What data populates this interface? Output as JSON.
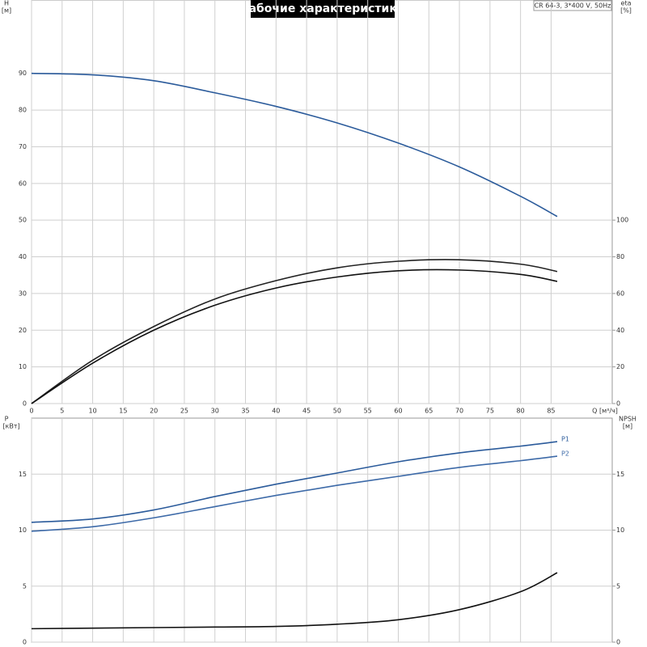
{
  "chart_data": [
    {
      "type": "line",
      "title": "Рабочие характеристики",
      "annotation": "CR 64-3, 3*400 V, 50Hz",
      "xlabel": "Q [м³/ч]",
      "ylabel": "H",
      "yunit": "[м]",
      "y2label": "eta",
      "y2unit": "[%]",
      "x": [
        0,
        10,
        20,
        30,
        40,
        50,
        60,
        70,
        80,
        86
      ],
      "xlim": [
        0,
        95
      ],
      "xticks": [
        0,
        5,
        10,
        15,
        20,
        25,
        30,
        35,
        40,
        45,
        50,
        55,
        60,
        65,
        70,
        75,
        80,
        85
      ],
      "ylim": [
        0,
        110
      ],
      "yticks": [
        0,
        10,
        20,
        30,
        40,
        50,
        60,
        70,
        80,
        90
      ],
      "y2lim": [
        0,
        220
      ],
      "y2ticks": [
        0,
        20,
        40,
        60,
        80,
        100
      ],
      "grid": true,
      "series": [
        {
          "color": "#2b5b9b",
          "values": [
            90,
            89.6,
            88,
            84.7,
            81,
            76.5,
            71,
            64.5,
            56.5,
            51
          ]
        },
        {
          "color": "#222222",
          "axis": "y2",
          "values": [
            0,
            23.6,
            42,
            57,
            67,
            74,
            77.6,
            78.4,
            76,
            72
          ]
        },
        {
          "color": "#111111",
          "axis": "y2",
          "values": [
            0,
            22,
            40,
            53.6,
            63,
            69,
            72.4,
            72.8,
            70.4,
            66.6
          ]
        }
      ]
    },
    {
      "type": "line",
      "ylabel": "P",
      "yunit": "[кВт]",
      "y2label": "NPSH",
      "y2unit": "[м]",
      "x": [
        0,
        10,
        20,
        30,
        40,
        50,
        60,
        70,
        80,
        86
      ],
      "xlim": [
        0,
        95
      ],
      "xticks": [
        0,
        5,
        10,
        15,
        20,
        25,
        30,
        35,
        40,
        45,
        50,
        55,
        60,
        65,
        70,
        75,
        80,
        85
      ],
      "ylim": [
        0,
        20
      ],
      "yticks": [
        0,
        5,
        10,
        15
      ],
      "y2lim": [
        0,
        20
      ],
      "y2ticks": [
        0,
        5,
        10,
        15
      ],
      "grid": true,
      "series": [
        {
          "name": "P1",
          "color": "#2b5b9b",
          "values": [
            10.7,
            11.0,
            11.8,
            13.0,
            14.1,
            15.1,
            16.1,
            16.9,
            17.5,
            17.9
          ]
        },
        {
          "name": "P2",
          "color": "#3d6aa8",
          "values": [
            9.9,
            10.3,
            11.1,
            12.1,
            13.1,
            14.0,
            14.8,
            15.6,
            16.2,
            16.6
          ]
        },
        {
          "color": "#111111",
          "axis": "y2",
          "values": [
            1.2,
            1.25,
            1.3,
            1.35,
            1.4,
            1.6,
            2.0,
            2.9,
            4.5,
            6.2
          ]
        }
      ]
    }
  ]
}
